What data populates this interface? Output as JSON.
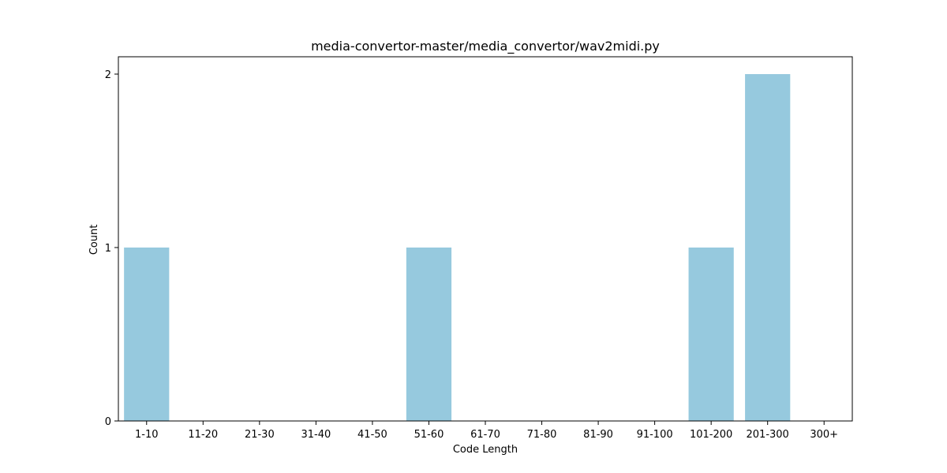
{
  "chart_data": {
    "type": "bar",
    "title": "media-convertor-master/media_convertor/wav2midi.py",
    "xlabel": "Code Length",
    "ylabel": "Count",
    "categories": [
      "1-10",
      "11-20",
      "21-30",
      "31-40",
      "41-50",
      "51-60",
      "61-70",
      "71-80",
      "81-90",
      "91-100",
      "101-200",
      "201-300",
      "300+"
    ],
    "values": [
      1,
      0,
      0,
      0,
      0,
      1,
      0,
      0,
      0,
      0,
      1,
      2,
      0
    ],
    "ylim": [
      0,
      2.1
    ],
    "yticks": [
      0,
      1,
      2
    ],
    "grid": false,
    "bar_color": "#96c9de"
  }
}
